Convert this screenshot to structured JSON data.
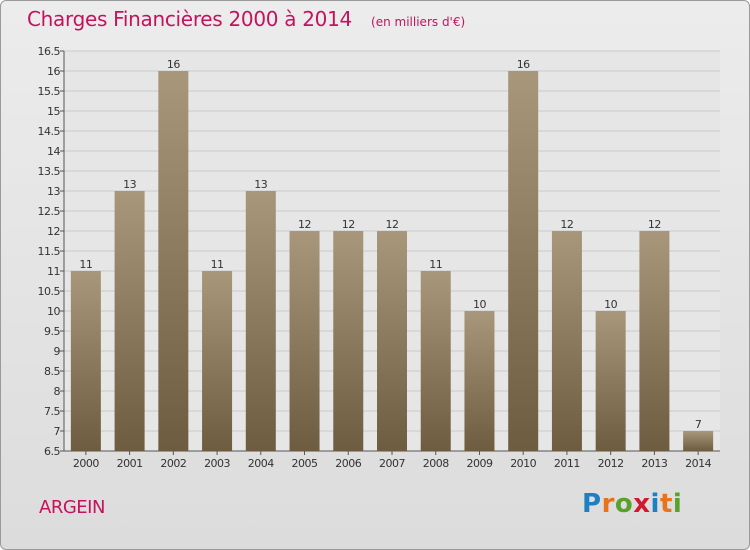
{
  "header": {
    "title": "Charges Financières 2000 à 2014",
    "subtitle": "(en milliers d'€)"
  },
  "footer": {
    "place": "ARGEIN",
    "logo": {
      "text": "Proxiti",
      "letter_colors": [
        "#1e7fc2",
        "#e8731a",
        "#5aa02c",
        "#d2182f",
        "#1e7fc2",
        "#e8731a",
        "#5aa02c"
      ]
    }
  },
  "chart_data": {
    "type": "bar",
    "categories": [
      "2000",
      "2001",
      "2002",
      "2003",
      "2004",
      "2005",
      "2006",
      "2007",
      "2008",
      "2009",
      "2010",
      "2011",
      "2012",
      "2013",
      "2014"
    ],
    "values": [
      11,
      13,
      16,
      11,
      13,
      12,
      12,
      12,
      11,
      10,
      16,
      12,
      10,
      12,
      7
    ],
    "ylim": [
      6.5,
      16.5
    ],
    "yticks": [
      6.5,
      7,
      7.5,
      8,
      8.5,
      9,
      9.5,
      10,
      10.5,
      11,
      11.5,
      12,
      12.5,
      13,
      13.5,
      14,
      14.5,
      15,
      15.5,
      16,
      16.5
    ],
    "grid": true,
    "colors": {
      "bar_top": "#a8977a",
      "bar_bottom": "#6e5c41",
      "grid": "#c9c9c9",
      "title": "#c4125f"
    }
  }
}
